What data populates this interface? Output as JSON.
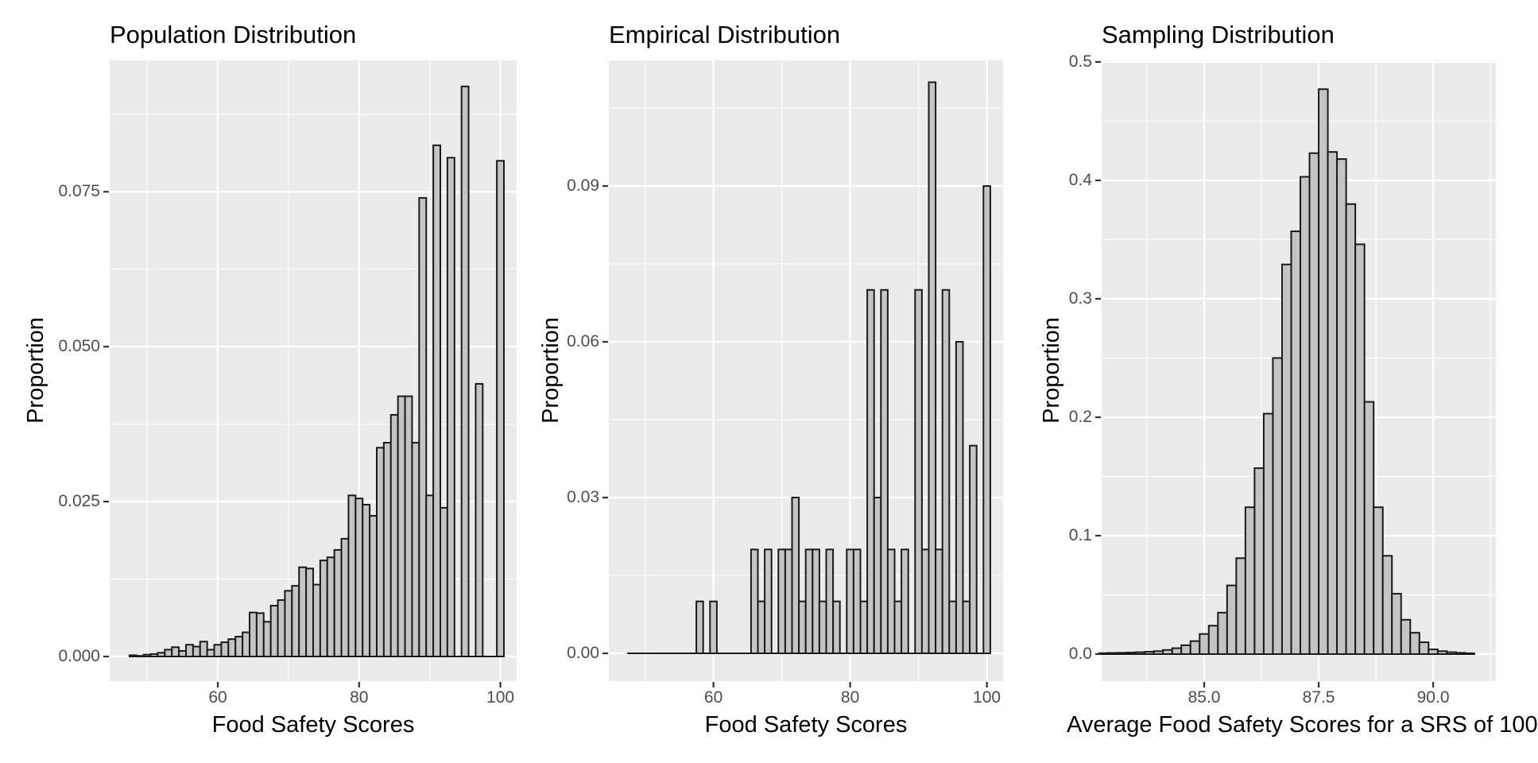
{
  "figure": {
    "background": "#ffffff",
    "style": {
      "panel_bg": "#ebebeb",
      "grid_major_color": "#ffffff",
      "grid_minor_color": "#ffffff",
      "bar_fill": "#c4c4c4",
      "bar_stroke": "#1a1a1a",
      "tick_label_color": "#4d4d4d",
      "tick_mark_color": "#333333",
      "text_color": "#000000"
    }
  },
  "chart_data": [
    {
      "type": "bar",
      "title": "Population Distribution",
      "xlabel": "Food Safety Scores",
      "ylabel": "Proportion",
      "x_range": [
        44.7,
        102.3
      ],
      "y_range": [
        0,
        0.0962
      ],
      "bin_width": 1,
      "grid": true,
      "legend": "none",
      "x_major_ticks": [
        {
          "value": 60,
          "label": "60"
        },
        {
          "value": 80,
          "label": "80"
        },
        {
          "value": 100,
          "label": "100"
        }
      ],
      "x_minor_ticks": [
        50,
        70,
        90
      ],
      "y_major_ticks": [
        {
          "value": 0.0,
          "label": "0.000"
        },
        {
          "value": 0.025,
          "label": "0.025"
        },
        {
          "value": 0.05,
          "label": "0.050"
        },
        {
          "value": 0.075,
          "label": "0.075"
        }
      ],
      "y_minor_ticks": [
        0.0125,
        0.0375,
        0.0625,
        0.0875
      ],
      "bars": {
        "x": [
          48,
          49,
          50,
          51,
          52,
          53,
          54,
          55,
          56,
          57,
          58,
          59,
          60,
          61,
          62,
          63,
          64,
          65,
          66,
          67,
          68,
          69,
          70,
          71,
          72,
          73,
          74,
          75,
          76,
          77,
          78,
          79,
          80,
          81,
          82,
          83,
          84,
          85,
          86,
          87,
          88,
          89,
          90,
          91,
          92,
          93,
          94,
          95,
          96,
          97,
          98,
          99,
          100
        ],
        "y": [
          0.0002,
          0.0001,
          0.0003,
          0.0004,
          0.0006,
          0.0011,
          0.0015,
          0.0009,
          0.0019,
          0.0016,
          0.0024,
          0.0011,
          0.0019,
          0.0023,
          0.0028,
          0.0032,
          0.0039,
          0.0071,
          0.007,
          0.0056,
          0.0082,
          0.0091,
          0.0106,
          0.0114,
          0.0144,
          0.0142,
          0.0116,
          0.0155,
          0.016,
          0.0172,
          0.019,
          0.026,
          0.0255,
          0.0245,
          0.0227,
          0.0337,
          0.0345,
          0.039,
          0.042,
          0.042,
          0.0345,
          0.074,
          0.026,
          0.0825,
          0.024,
          0.0805,
          0,
          0.092,
          0,
          0.044,
          0,
          0,
          0.08
        ]
      }
    },
    {
      "type": "bar",
      "title": "Empirical Distribution",
      "xlabel": "Food Safety Scores",
      "ylabel": "Proportion",
      "x_range": [
        44.7,
        102.37
      ],
      "y_range": [
        0,
        0.1142
      ],
      "bin_width": 1,
      "grid": true,
      "legend": "none",
      "x_major_ticks": [
        {
          "value": 60,
          "label": "60"
        },
        {
          "value": 80,
          "label": "80"
        },
        {
          "value": 100,
          "label": "100"
        }
      ],
      "x_minor_ticks": [
        50,
        70,
        90
      ],
      "y_major_ticks": [
        {
          "value": 0.0,
          "label": "0.00"
        },
        {
          "value": 0.03,
          "label": "0.03"
        },
        {
          "value": 0.06,
          "label": "0.06"
        },
        {
          "value": 0.09,
          "label": "0.09"
        }
      ],
      "y_minor_ticks": [
        0.015,
        0.045,
        0.075,
        0.105
      ],
      "bars": {
        "x": [
          48,
          49,
          50,
          51,
          52,
          53,
          54,
          55,
          56,
          57,
          58,
          59,
          60,
          61,
          62,
          63,
          64,
          65,
          66,
          67,
          68,
          69,
          70,
          71,
          72,
          73,
          74,
          75,
          76,
          77,
          78,
          79,
          80,
          81,
          82,
          83,
          84,
          85,
          86,
          87,
          88,
          89,
          90,
          91,
          92,
          93,
          94,
          95,
          96,
          97,
          98,
          99,
          100
        ],
        "y": [
          0,
          0,
          0,
          0,
          0,
          0,
          0,
          0,
          0,
          0,
          0.01,
          0,
          0.01,
          0,
          0,
          0,
          0,
          0,
          0.02,
          0.01,
          0.02,
          0,
          0.02,
          0.02,
          0.03,
          0.01,
          0.02,
          0.02,
          0.01,
          0.02,
          0.01,
          0,
          0.02,
          0.02,
          0.01,
          0.07,
          0.03,
          0.07,
          0.02,
          0.01,
          0.02,
          0,
          0.07,
          0.02,
          0.11,
          0.02,
          0.07,
          0.01,
          0.06,
          0.01,
          0.04,
          0,
          0.09
        ]
      }
    },
    {
      "type": "bar",
      "title": "Sampling Distribution",
      "xlabel": "Average Food Safety Scores for a SRS of 100",
      "ylabel": "Proportion",
      "x_range": [
        82.76,
        91.37
      ],
      "y_range": [
        0,
        0.5013
      ],
      "bin_width": 0.2,
      "grid": true,
      "legend": "none",
      "x_major_ticks": [
        {
          "value": 85.0,
          "label": "85.0"
        },
        {
          "value": 87.5,
          "label": "87.5"
        },
        {
          "value": 90.0,
          "label": "90.0"
        }
      ],
      "x_minor_ticks": [
        83.75,
        86.25,
        88.75,
        91.25
      ],
      "y_major_ticks": [
        {
          "value": 0.0,
          "label": "0.0"
        },
        {
          "value": 0.1,
          "label": "0.1"
        },
        {
          "value": 0.2,
          "label": "0.2"
        },
        {
          "value": 0.3,
          "label": "0.3"
        },
        {
          "value": 0.4,
          "label": "0.4"
        },
        {
          "value": 0.5,
          "label": "0.5"
        }
      ],
      "y_minor_ticks": [
        0.05,
        0.15,
        0.25,
        0.35,
        0.45
      ],
      "bars": {
        "x": [
          82.8,
          83.0,
          83.2,
          83.4,
          83.6,
          83.8,
          84.0,
          84.2,
          84.4,
          84.6,
          84.8,
          85.0,
          85.2,
          85.4,
          85.6,
          85.8,
          86.0,
          86.2,
          86.4,
          86.6,
          86.8,
          87.0,
          87.2,
          87.4,
          87.6,
          87.8,
          88.0,
          88.2,
          88.4,
          88.6,
          88.8,
          89.0,
          89.2,
          89.4,
          89.6,
          89.8,
          90.0,
          90.2,
          90.4,
          90.6,
          90.8
        ],
        "y": [
          0.0008,
          0.001,
          0.0011,
          0.0013,
          0.0016,
          0.002,
          0.0025,
          0.0035,
          0.005,
          0.0075,
          0.011,
          0.017,
          0.024,
          0.035,
          0.058,
          0.081,
          0.124,
          0.157,
          0.203,
          0.25,
          0.329,
          0.357,
          0.403,
          0.423,
          0.477,
          0.424,
          0.418,
          0.38,
          0.346,
          0.213,
          0.124,
          0.083,
          0.051,
          0.029,
          0.018,
          0.01,
          0.004,
          0.0025,
          0.0016,
          0.0011,
          0.0007
        ]
      }
    }
  ]
}
